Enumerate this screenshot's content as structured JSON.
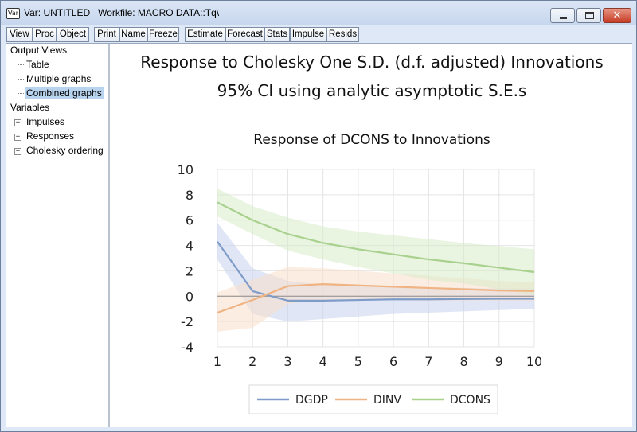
{
  "window": {
    "app_icon": "Var",
    "title": "Var: UNTITLED   Workfile: MACRO DATA::Tq\\"
  },
  "toolbar": {
    "buttons": [
      "View",
      "Proc",
      "Object",
      "Print",
      "Name",
      "Freeze",
      "Estimate",
      "Forecast",
      "Stats",
      "Impulse",
      "Resids"
    ]
  },
  "sidebar": {
    "output_views": {
      "label": "Output Views",
      "items": [
        "Table",
        "Multiple graphs",
        "Combined graphs"
      ],
      "selected": "Combined graphs"
    },
    "variables": {
      "label": "Variables",
      "items": [
        "Impulses",
        "Responses",
        "Cholesky ordering"
      ]
    }
  },
  "graph": {
    "title_line1": "Response to Cholesky One S.D. (d.f. adjusted) Innovations",
    "title_line2": "95% CI using analytic asymptotic S.E.s"
  },
  "chart_data": {
    "type": "line",
    "title": "Response of DCONS to Innovations",
    "xlabel": "",
    "ylabel": "",
    "x": [
      1,
      2,
      3,
      4,
      5,
      6,
      7,
      8,
      9,
      10
    ],
    "xticks": [
      1,
      2,
      3,
      4,
      5,
      6,
      7,
      8,
      9,
      10
    ],
    "ylim": [
      -4,
      10
    ],
    "yticks": [
      -4,
      -2,
      0,
      2,
      4,
      6,
      8,
      10
    ],
    "grid": true,
    "legend_position": "bottom",
    "series": [
      {
        "name": "DGDP",
        "color": "#7f9cc9",
        "band_color": "#c6d2ec",
        "values": [
          4.3,
          0.4,
          -0.35,
          -0.35,
          -0.3,
          -0.25,
          -0.25,
          -0.22,
          -0.2,
          -0.2
        ],
        "upper": [
          5.8,
          2.2,
          1.2,
          0.9,
          0.8,
          0.75,
          0.7,
          0.65,
          0.6,
          0.6
        ],
        "lower": [
          2.9,
          -1.4,
          -2.0,
          -1.8,
          -1.6,
          -1.4,
          -1.3,
          -1.2,
          -1.1,
          -1.0
        ]
      },
      {
        "name": "DINV",
        "color": "#f0b383",
        "band_color": "#f8dfc8",
        "values": [
          -1.3,
          -0.3,
          0.8,
          0.95,
          0.85,
          0.75,
          0.65,
          0.55,
          0.45,
          0.4
        ],
        "upper": [
          0.3,
          1.3,
          2.3,
          2.2,
          2.0,
          1.8,
          1.6,
          1.4,
          1.2,
          1.1
        ],
        "lower": [
          -2.8,
          -2.5,
          -0.6,
          -0.3,
          -0.3,
          -0.3,
          -0.35,
          -0.35,
          -0.35,
          -0.35
        ]
      },
      {
        "name": "DCONS",
        "color": "#a9d18e",
        "band_color": "#d7ebc9",
        "values": [
          7.4,
          6.0,
          4.9,
          4.2,
          3.7,
          3.3,
          2.9,
          2.6,
          2.25,
          1.9
        ],
        "upper": [
          8.5,
          7.1,
          6.2,
          5.5,
          5.1,
          4.8,
          4.5,
          4.2,
          3.95,
          3.7
        ],
        "lower": [
          6.3,
          4.9,
          3.6,
          2.9,
          2.3,
          1.8,
          1.3,
          1.0,
          0.55,
          0.1
        ]
      }
    ]
  }
}
